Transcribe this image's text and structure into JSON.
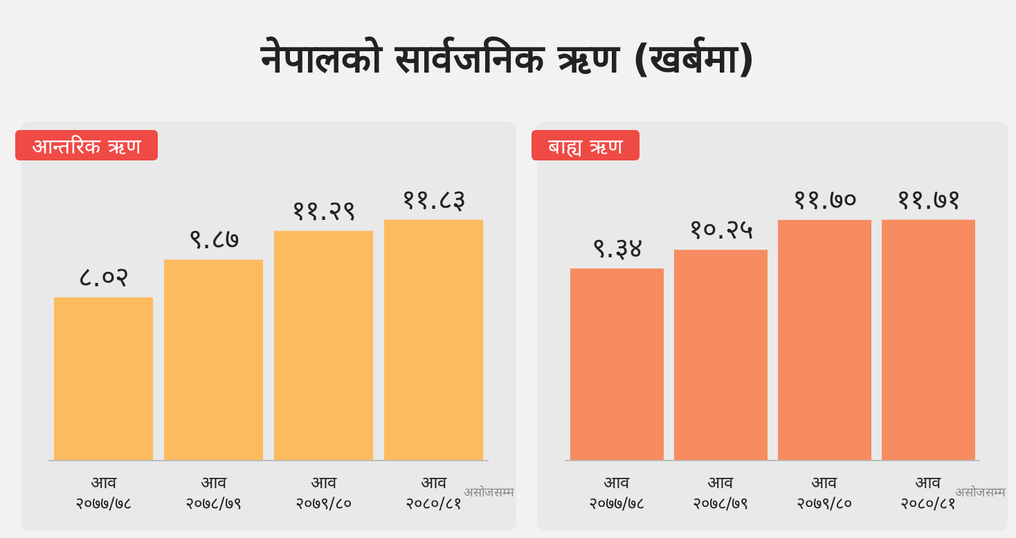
{
  "chart_data": [
    {
      "type": "bar",
      "title": "नेपालको सार्वजनिक ऋण (खर्बमा)",
      "subtitle": "आन्तरिक ऋण",
      "categories": [
        "आव २०७७/७८",
        "आव २०७८/७९",
        "आव २०७९/८०",
        "आव २०८०/८१"
      ],
      "values": [
        8.02,
        9.87,
        11.29,
        11.83
      ],
      "value_labels": [
        "८.०२",
        "९.८७",
        "११.२९",
        "११.८३"
      ],
      "color": "#fdbb5f",
      "annotations": [
        "असोजसम्म"
      ],
      "grid": false,
      "legend": false
    },
    {
      "type": "bar",
      "subtitle": "बाह्य ऋण",
      "categories": [
        "आव २०७७/७८",
        "आव २०७८/७९",
        "आव २०७९/८०",
        "आव २०८०/८१"
      ],
      "values": [
        9.34,
        10.25,
        11.7,
        11.71
      ],
      "value_labels": [
        "९.३४",
        "१०.२५",
        "११.७०",
        "११.७१"
      ],
      "color": "#f68c5f",
      "annotations": [
        "असोजसम्म"
      ],
      "grid": false,
      "legend": false
    }
  ]
}
